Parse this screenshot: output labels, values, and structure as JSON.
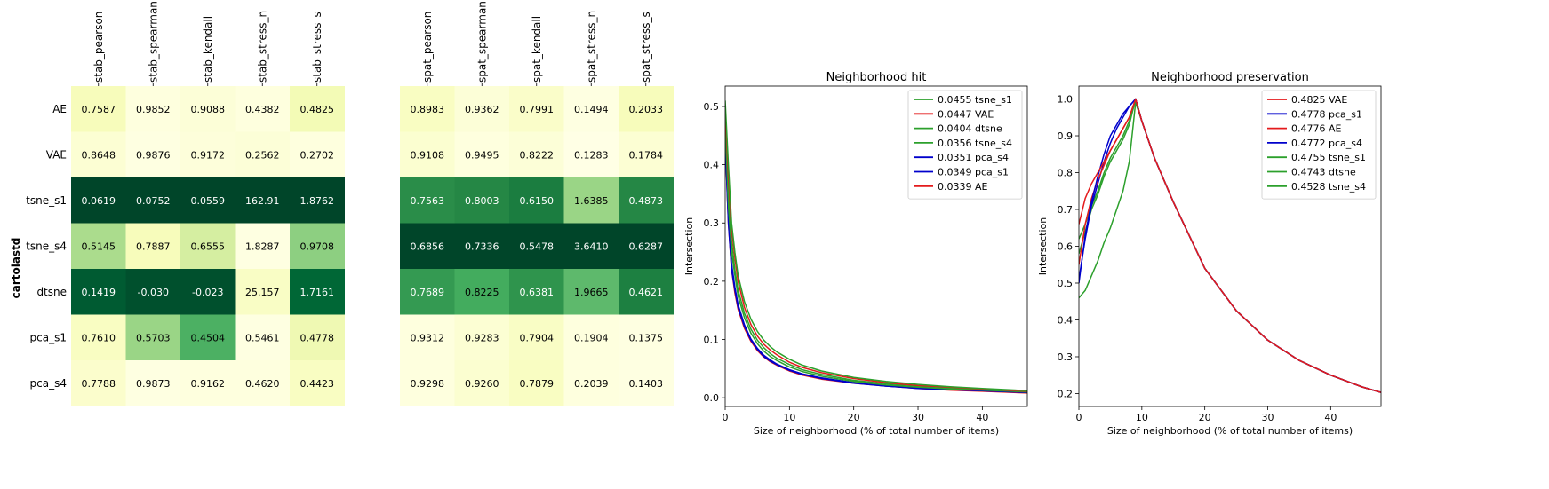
{
  "dataset_label": "cartolastd",
  "chart_data": [
    {
      "type": "heatmap",
      "rows": [
        "AE",
        "VAE",
        "tsne_s1",
        "tsne_s4",
        "dtsne",
        "pca_s1",
        "pca_s4"
      ],
      "columns": [
        "stab_pearson",
        "stab_spearman",
        "stab_kendall",
        "stab_stress_n",
        "stab_stress_s"
      ],
      "cells": [
        [
          "0.7587",
          "0.9852",
          "0.9088",
          "0.4382",
          "0.4825"
        ],
        [
          "0.8648",
          "0.9876",
          "0.9172",
          "0.2562",
          "0.2702"
        ],
        [
          "0.0619",
          "0.0752",
          "0.0559",
          "162.91",
          "1.8762"
        ],
        [
          "0.5145",
          "0.7887",
          "0.6555",
          "1.8287",
          "0.9708"
        ],
        [
          "0.1419",
          "-0.030",
          "-0.023",
          "25.157",
          "1.7161"
        ],
        [
          "0.7610",
          "0.5703",
          "0.4504",
          "0.5461",
          "0.4778"
        ],
        [
          "0.7788",
          "0.9873",
          "0.9162",
          "0.4620",
          "0.4423"
        ]
      ],
      "shade": [
        [
          0.12,
          0.02,
          0.04,
          0.02,
          0.14
        ],
        [
          0.05,
          0.01,
          0.03,
          0.04,
          0.02
        ],
        [
          1.0,
          1.0,
          1.0,
          1.0,
          1.0
        ],
        [
          0.38,
          0.12,
          0.26,
          0.01,
          0.45
        ],
        [
          0.92,
          0.96,
          0.96,
          0.09,
          0.88
        ],
        [
          0.1,
          0.42,
          0.6,
          0.01,
          0.16
        ],
        [
          0.07,
          0.01,
          0.02,
          0.02,
          0.1
        ]
      ]
    },
    {
      "type": "heatmap",
      "rows": [
        "AE",
        "VAE",
        "tsne_s1",
        "tsne_s4",
        "dtsne",
        "pca_s1",
        "pca_s4"
      ],
      "columns": [
        "spat_pearson",
        "spat_spearman",
        "spat_kendall",
        "spat_stress_n",
        "spat_stress_s"
      ],
      "cells": [
        [
          "0.8983",
          "0.9362",
          "0.7991",
          "0.1494",
          "0.2033"
        ],
        [
          "0.9108",
          "0.9495",
          "0.8222",
          "0.1283",
          "0.1784"
        ],
        [
          "0.7563",
          "0.8003",
          "0.6150",
          "1.6385",
          "0.4873"
        ],
        [
          "0.6856",
          "0.7336",
          "0.5478",
          "3.6410",
          "0.6287"
        ],
        [
          "0.7689",
          "0.8225",
          "0.6381",
          "1.9665",
          "0.4621"
        ],
        [
          "0.9312",
          "0.9283",
          "0.7904",
          "0.1904",
          "0.1375"
        ],
        [
          "0.9298",
          "0.9260",
          "0.7879",
          "0.2039",
          "0.1403"
        ]
      ],
      "shade": [
        [
          0.1,
          0.04,
          0.08,
          0.01,
          0.12
        ],
        [
          0.06,
          0.02,
          0.04,
          0.0,
          0.05
        ],
        [
          0.72,
          0.74,
          0.78,
          0.42,
          0.74
        ],
        [
          1.0,
          1.0,
          1.0,
          1.0,
          1.0
        ],
        [
          0.68,
          0.62,
          0.7,
          0.56,
          0.77
        ],
        [
          0.02,
          0.05,
          0.09,
          0.02,
          0.01
        ],
        [
          0.02,
          0.06,
          0.1,
          0.02,
          0.01
        ]
      ]
    },
    {
      "type": "line",
      "title": "Neighborhood hit",
      "xlabel": "Size of neighborhood (% of total number of items)",
      "ylabel": "Intersection",
      "xlim": [
        0,
        47
      ],
      "ylim": [
        -0.015,
        0.535
      ],
      "xticks": [
        0,
        10,
        20,
        30,
        40
      ],
      "yticks": [
        0.0,
        0.1,
        0.2,
        0.3,
        0.4,
        0.5
      ],
      "legend_position": "upper right",
      "x": [
        0,
        0.5,
        1,
        1.5,
        2,
        3,
        4,
        5,
        6,
        7,
        8,
        10,
        12,
        15,
        20,
        25,
        30,
        35,
        40,
        47
      ],
      "series": [
        {
          "name": "0.0455 tsne_s1",
          "color": "#2ca02c",
          "values": [
            0.51,
            0.4,
            0.3,
            0.25,
            0.21,
            0.165,
            0.135,
            0.114,
            0.099,
            0.088,
            0.079,
            0.066,
            0.056,
            0.046,
            0.035,
            0.028,
            0.023,
            0.019,
            0.016,
            0.012
          ]
        },
        {
          "name": "0.0447 VAE",
          "color": "#e41a1c",
          "values": [
            0.5,
            0.38,
            0.29,
            0.24,
            0.2,
            0.155,
            0.126,
            0.106,
            0.092,
            0.082,
            0.074,
            0.061,
            0.052,
            0.043,
            0.033,
            0.026,
            0.021,
            0.018,
            0.015,
            0.011
          ]
        },
        {
          "name": "0.0404 dtsne",
          "color": "#2ca02c",
          "values": [
            0.5,
            0.36,
            0.27,
            0.22,
            0.185,
            0.145,
            0.118,
            0.099,
            0.086,
            0.076,
            0.068,
            0.057,
            0.048,
            0.04,
            0.03,
            0.024,
            0.02,
            0.017,
            0.014,
            0.01
          ]
        },
        {
          "name": "0.0356 tsne_s4",
          "color": "#2ca02c",
          "values": [
            0.47,
            0.33,
            0.25,
            0.21,
            0.175,
            0.137,
            0.111,
            0.093,
            0.08,
            0.071,
            0.064,
            0.053,
            0.045,
            0.037,
            0.028,
            0.022,
            0.018,
            0.015,
            0.013,
            0.01
          ]
        },
        {
          "name": "0.0351 pca_s4",
          "color": "#0000cc",
          "values": [
            0.45,
            0.31,
            0.23,
            0.19,
            0.16,
            0.125,
            0.101,
            0.085,
            0.073,
            0.065,
            0.058,
            0.048,
            0.041,
            0.034,
            0.026,
            0.02,
            0.017,
            0.014,
            0.012,
            0.009
          ]
        },
        {
          "name": "0.0349 pca_s1",
          "color": "#0000cc",
          "values": [
            0.44,
            0.3,
            0.22,
            0.185,
            0.155,
            0.122,
            0.099,
            0.083,
            0.071,
            0.063,
            0.057,
            0.047,
            0.04,
            0.033,
            0.025,
            0.02,
            0.016,
            0.014,
            0.012,
            0.009
          ]
        },
        {
          "name": "0.0339 AE",
          "color": "#e41a1c",
          "values": [
            0.44,
            0.3,
            0.22,
            0.18,
            0.152,
            0.119,
            0.097,
            0.081,
            0.07,
            0.062,
            0.056,
            0.046,
            0.039,
            0.032,
            0.025,
            0.02,
            0.016,
            0.013,
            0.011,
            0.008
          ]
        }
      ]
    },
    {
      "type": "line",
      "title": "Neighborhood preservation",
      "xlabel": "Size of neighborhood (% of total number of items)",
      "ylabel": "Intersection",
      "xlim": [
        0,
        48
      ],
      "ylim": [
        0.165,
        1.035
      ],
      "xticks": [
        0,
        10,
        20,
        30,
        40
      ],
      "yticks": [
        0.2,
        0.3,
        0.4,
        0.5,
        0.6,
        0.7,
        0.8,
        0.9,
        1.0
      ],
      "legend_position": "upper right",
      "x": [
        0,
        1,
        2,
        3,
        4,
        5,
        6,
        7,
        8,
        9,
        10,
        12,
        15,
        20,
        25,
        30,
        35,
        40,
        45,
        48
      ],
      "series": [
        {
          "name": "0.4825 VAE",
          "color": "#e41a1c",
          "values": [
            0.66,
            0.73,
            0.77,
            0.8,
            0.83,
            0.86,
            0.89,
            0.92,
            0.95,
            1.0,
            0.94,
            0.84,
            0.72,
            0.54,
            0.425,
            0.345,
            0.29,
            0.25,
            0.218,
            0.203
          ]
        },
        {
          "name": "0.4778 pca_s1",
          "color": "#0000cc",
          "values": [
            0.5,
            0.63,
            0.72,
            0.79,
            0.85,
            0.9,
            0.93,
            0.96,
            0.98,
            1.0,
            0.94,
            0.84,
            0.72,
            0.54,
            0.425,
            0.345,
            0.29,
            0.25,
            0.218,
            0.203
          ]
        },
        {
          "name": "0.4776 AE",
          "color": "#e41a1c",
          "values": [
            0.55,
            0.66,
            0.73,
            0.78,
            0.82,
            0.86,
            0.89,
            0.92,
            0.95,
            1.0,
            0.94,
            0.84,
            0.72,
            0.54,
            0.425,
            0.345,
            0.29,
            0.25,
            0.218,
            0.203
          ]
        },
        {
          "name": "0.4772 pca_s4",
          "color": "#0000cc",
          "values": [
            0.51,
            0.62,
            0.71,
            0.77,
            0.83,
            0.88,
            0.92,
            0.95,
            0.98,
            1.0,
            0.94,
            0.84,
            0.72,
            0.54,
            0.425,
            0.345,
            0.29,
            0.25,
            0.218,
            0.203
          ]
        },
        {
          "name": "0.4755 tsne_s1",
          "color": "#2ca02c",
          "values": [
            0.62,
            0.66,
            0.71,
            0.75,
            0.8,
            0.84,
            0.87,
            0.9,
            0.94,
            1.0,
            0.94,
            0.84,
            0.72,
            0.54,
            0.425,
            0.345,
            0.29,
            0.25,
            0.218,
            0.203
          ]
        },
        {
          "name": "0.4743 dtsne",
          "color": "#2ca02c",
          "values": [
            0.58,
            0.64,
            0.7,
            0.74,
            0.79,
            0.83,
            0.86,
            0.89,
            0.93,
            1.0,
            0.94,
            0.84,
            0.72,
            0.54,
            0.425,
            0.345,
            0.29,
            0.25,
            0.218,
            0.203
          ]
        },
        {
          "name": "0.4528 tsne_s4",
          "color": "#2ca02c",
          "values": [
            0.46,
            0.48,
            0.52,
            0.56,
            0.61,
            0.65,
            0.7,
            0.75,
            0.83,
            0.99,
            0.94,
            0.84,
            0.72,
            0.54,
            0.425,
            0.345,
            0.29,
            0.25,
            0.218,
            0.203
          ]
        }
      ]
    }
  ]
}
